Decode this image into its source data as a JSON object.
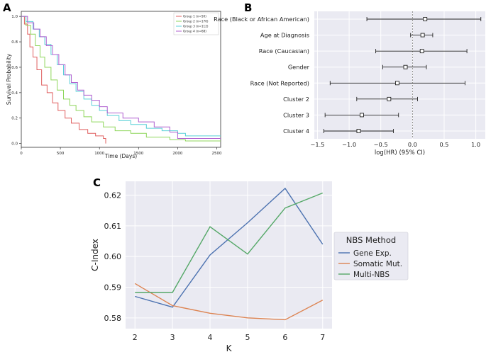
{
  "panels": {
    "a": {
      "label": "A"
    },
    "b": {
      "label": "B"
    },
    "c": {
      "label": "C"
    }
  },
  "chart_data": [
    {
      "type": "line",
      "panel": "A",
      "title": "",
      "xlabel": "Time (Days)",
      "ylabel": "Survival Probability",
      "xlim": [
        0,
        2550
      ],
      "ylim": [
        -0.03,
        1.04
      ],
      "xticks": [
        0,
        500,
        1000,
        1500,
        2000,
        2500
      ],
      "yticks": [
        0.0,
        0.2,
        0.4,
        0.6,
        0.8,
        1.0
      ],
      "xtick_labels": [
        "0",
        "500",
        "1000",
        "1500",
        "2000",
        "2500"
      ],
      "ytick_labels": [
        "0.0",
        "0.2",
        "0.4",
        "0.6",
        "0.8",
        "1.0"
      ],
      "legend_position": "top-right",
      "series": [
        {
          "name": "Group 1 (n=50)",
          "color": "#e06060",
          "x": [
            0,
            40,
            80,
            110,
            150,
            200,
            260,
            330,
            400,
            470,
            560,
            640,
            740,
            850,
            950,
            1050,
            1080
          ],
          "y": [
            1.0,
            0.94,
            0.86,
            0.76,
            0.68,
            0.58,
            0.46,
            0.4,
            0.32,
            0.26,
            0.2,
            0.16,
            0.11,
            0.08,
            0.06,
            0.04,
            0.0
          ]
        },
        {
          "name": "Group 2 (n=170)",
          "color": "#8fd65b",
          "x": [
            0,
            60,
            120,
            180,
            240,
            300,
            380,
            460,
            540,
            620,
            700,
            800,
            900,
            1050,
            1200,
            1400,
            1600,
            1900,
            2100,
            2550
          ],
          "y": [
            1.0,
            0.93,
            0.86,
            0.77,
            0.68,
            0.6,
            0.5,
            0.42,
            0.35,
            0.3,
            0.26,
            0.21,
            0.17,
            0.13,
            0.1,
            0.08,
            0.05,
            0.03,
            0.02,
            0.02
          ]
        },
        {
          "name": "Group 3 (n=112)",
          "color": "#5ad0d8",
          "x": [
            0,
            60,
            150,
            230,
            300,
            380,
            460,
            540,
            620,
            700,
            800,
            900,
            1000,
            1100,
            1250,
            1400,
            1600,
            1800,
            2000,
            2100,
            2550
          ],
          "y": [
            1.0,
            0.96,
            0.9,
            0.84,
            0.78,
            0.7,
            0.62,
            0.54,
            0.47,
            0.41,
            0.35,
            0.3,
            0.26,
            0.22,
            0.18,
            0.15,
            0.12,
            0.1,
            0.08,
            0.06,
            0.06
          ]
        },
        {
          "name": "Group 4 (n=68)",
          "color": "#b060d0",
          "x": [
            0,
            80,
            160,
            240,
            320,
            400,
            480,
            560,
            640,
            720,
            800,
            900,
            1000,
            1100,
            1300,
            1500,
            1700,
            1900,
            2000,
            2550
          ],
          "y": [
            1.0,
            0.95,
            0.9,
            0.84,
            0.77,
            0.7,
            0.62,
            0.54,
            0.48,
            0.42,
            0.38,
            0.34,
            0.29,
            0.24,
            0.2,
            0.17,
            0.13,
            0.09,
            0.04,
            0.04
          ]
        }
      ]
    },
    {
      "type": "scatter",
      "subtype": "forest",
      "panel": "B",
      "title": "",
      "xlabel": "log(HR) (95% CI)",
      "ylabel": "",
      "xlim": [
        -1.55,
        1.15
      ],
      "xticks": [
        -1.5,
        -1.0,
        -0.5,
        0.0,
        0.5,
        1.0
      ],
      "xtick_labels": [
        "−1.5",
        "−1.0",
        "−0.5",
        "0.0",
        "0.5",
        "1.0"
      ],
      "reference_line": 0,
      "rows": [
        {
          "label": "Race (Black or African American)",
          "estimate": 0.2,
          "ci_low": -0.72,
          "ci_high": 1.08
        },
        {
          "label": "Age at Diagnosis",
          "estimate": 0.16,
          "ci_low": -0.03,
          "ci_high": 0.32
        },
        {
          "label": "Race (Caucasian)",
          "estimate": 0.15,
          "ci_low": -0.58,
          "ci_high": 0.86
        },
        {
          "label": "Gender",
          "estimate": -0.11,
          "ci_low": -0.47,
          "ci_high": 0.22
        },
        {
          "label": "Race (Not Reported)",
          "estimate": -0.24,
          "ci_low": -1.3,
          "ci_high": 0.83
        },
        {
          "label": "Cluster 2",
          "estimate": -0.37,
          "ci_low": -0.88,
          "ci_high": 0.08
        },
        {
          "label": "Cluster 3",
          "estimate": -0.8,
          "ci_low": -1.38,
          "ci_high": -0.22
        },
        {
          "label": "Cluster 4",
          "estimate": -0.85,
          "ci_low": -1.4,
          "ci_high": -0.3
        }
      ]
    },
    {
      "type": "line",
      "panel": "C",
      "title": "",
      "xlabel": "K",
      "ylabel": "C-Index",
      "xlim": [
        1.75,
        7.25
      ],
      "ylim": [
        0.5765,
        0.6245
      ],
      "xticks": [
        2,
        3,
        4,
        5,
        6,
        7
      ],
      "yticks": [
        0.58,
        0.59,
        0.6,
        0.61,
        0.62
      ],
      "xtick_labels": [
        "2",
        "3",
        "4",
        "5",
        "6",
        "7"
      ],
      "ytick_labels": [
        "0.58",
        "0.59",
        "0.60",
        "0.61",
        "0.62"
      ],
      "legend_title": "NBS Method",
      "legend_position": "outside-right",
      "categories": [
        2,
        3,
        4,
        5,
        6,
        7
      ],
      "series": [
        {
          "name": "Gene Exp.",
          "color": "#4c72b0",
          "values": [
            0.587,
            0.5835,
            0.6005,
            0.611,
            0.6222,
            0.604
          ]
        },
        {
          "name": "Somatic Mut.",
          "color": "#dd8452",
          "values": [
            0.5912,
            0.584,
            0.5815,
            0.58,
            0.5794,
            0.5858
          ]
        },
        {
          "name": "Multi-NBS",
          "color": "#55a868",
          "values": [
            0.5883,
            0.5883,
            0.6097,
            0.6008,
            0.6158,
            0.6207
          ]
        }
      ]
    }
  ]
}
